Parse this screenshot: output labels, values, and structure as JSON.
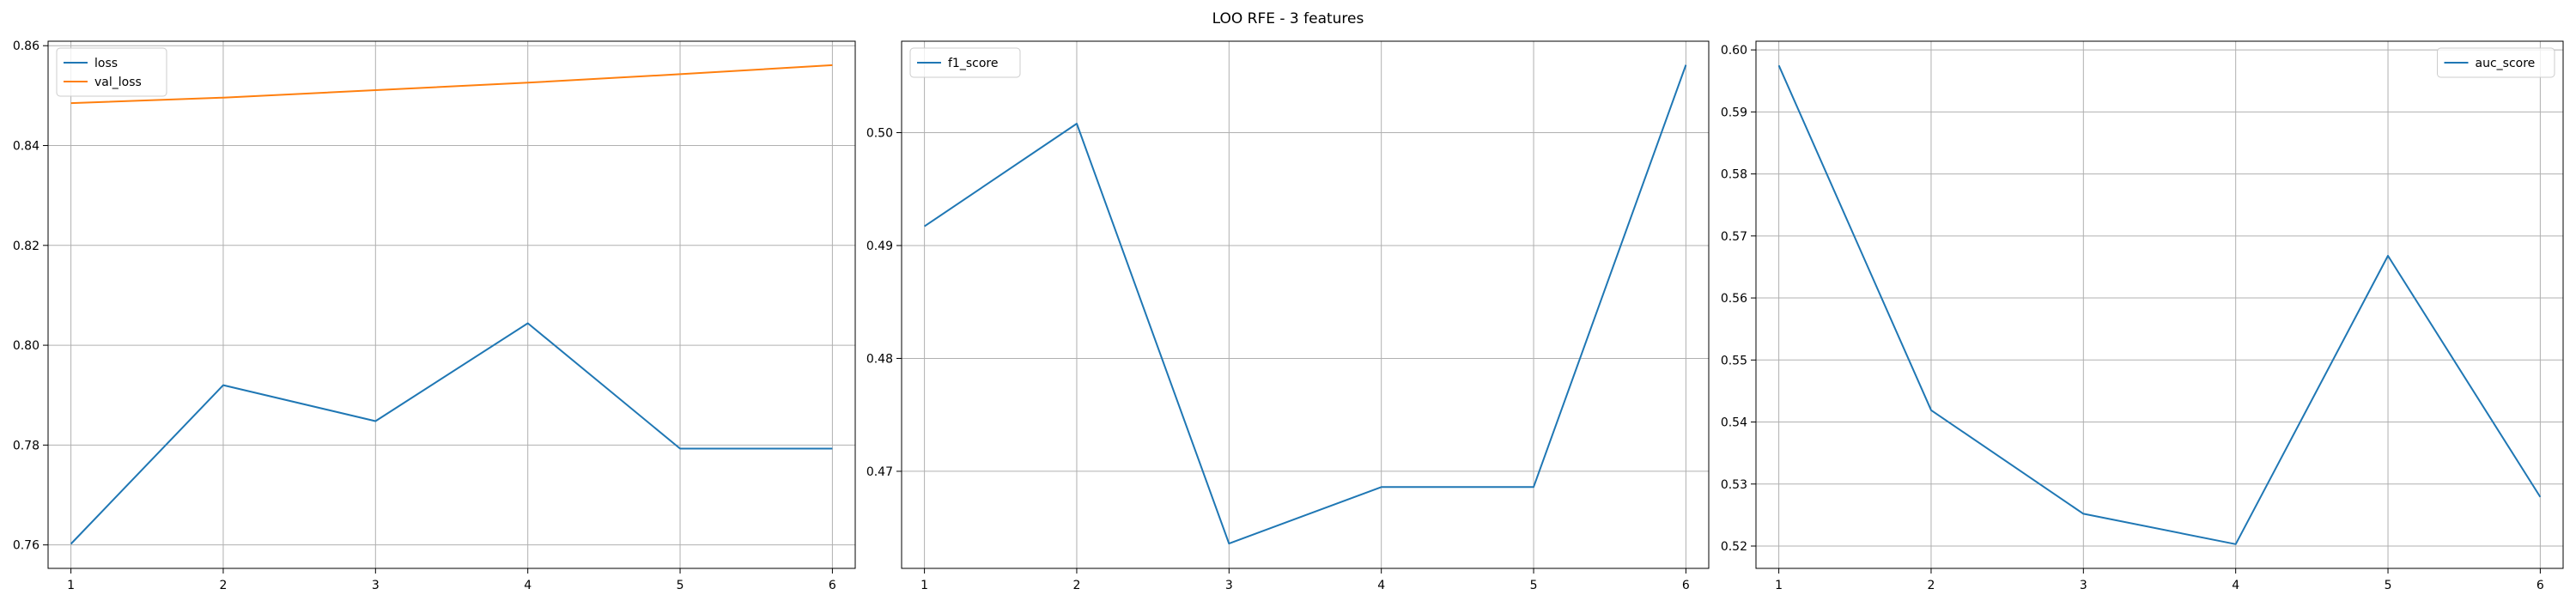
{
  "figure": {
    "title": "LOO RFE - 3 features"
  },
  "chart_data": [
    {
      "type": "line",
      "title": "",
      "xlabel": "",
      "ylabel": "",
      "grid": true,
      "legend_position": "upper left",
      "xlim": [
        0.85,
        6.15
      ],
      "ylim": [
        0.7553,
        0.8609
      ],
      "xticks": [
        1,
        2,
        3,
        4,
        5,
        6
      ],
      "yticks": [
        0.76,
        0.78,
        0.8,
        0.82,
        0.84,
        0.86
      ],
      "x": [
        1,
        2,
        3,
        4,
        5,
        6
      ],
      "series": [
        {
          "name": "loss",
          "color": "#1f77b4",
          "values": [
            0.7602,
            0.792,
            0.7848,
            0.8044,
            0.7793,
            0.7793
          ]
        },
        {
          "name": "val_loss",
          "color": "#ff7f0e",
          "values": [
            0.8485,
            0.8496,
            0.8511,
            0.8526,
            0.8543,
            0.8561
          ]
        }
      ]
    },
    {
      "type": "line",
      "title": "",
      "xlabel": "",
      "ylabel": "",
      "grid": true,
      "legend_position": "upper left",
      "xlim": [
        0.85,
        6.15
      ],
      "ylim": [
        0.4614,
        0.5081
      ],
      "xticks": [
        1,
        2,
        3,
        4,
        5,
        6
      ],
      "yticks": [
        0.47,
        0.48,
        0.49,
        0.5
      ],
      "x": [
        1,
        2,
        3,
        4,
        5,
        6
      ],
      "series": [
        {
          "name": "f1_score",
          "color": "#1f77b4",
          "values": [
            0.4917,
            0.5008,
            0.4636,
            0.4686,
            0.4686,
            0.506
          ]
        }
      ]
    },
    {
      "type": "line",
      "title": "",
      "xlabel": "",
      "ylabel": "",
      "grid": true,
      "legend_position": "upper right",
      "xlim": [
        0.85,
        6.15
      ],
      "ylim": [
        0.5164,
        0.6014
      ],
      "xticks": [
        1,
        2,
        3,
        4,
        5,
        6
      ],
      "yticks": [
        0.52,
        0.53,
        0.54,
        0.55,
        0.56,
        0.57,
        0.58,
        0.59,
        0.6
      ],
      "x": [
        1,
        2,
        3,
        4,
        5,
        6
      ],
      "series": [
        {
          "name": "auc_score",
          "color": "#1f77b4",
          "values": [
            0.5975,
            0.5419,
            0.5252,
            0.5203,
            0.5668,
            0.5279
          ]
        }
      ]
    }
  ]
}
